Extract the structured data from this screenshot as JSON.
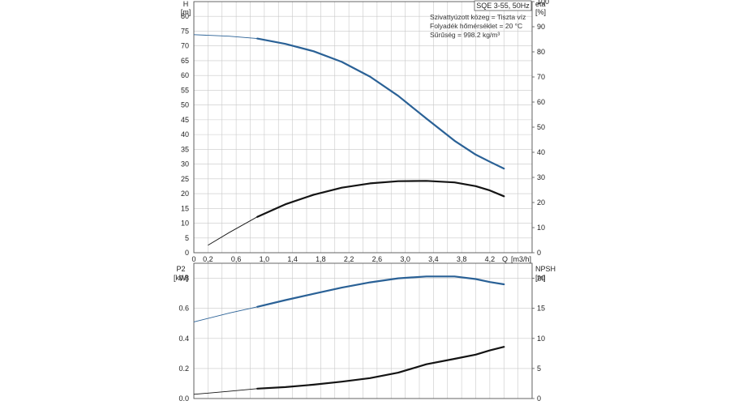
{
  "title": "SQE 3-55, 50Hz",
  "conditions": [
    "Szivattyúzott közeg = Tiszta víz",
    "Folyadék hőmérséklet = 20 °C",
    "Sűrűség = 998.2 kg/m³"
  ],
  "colors": {
    "blue": "#2a6196",
    "black": "#141414",
    "grid": "#c8c8c8",
    "axis": "#555555"
  },
  "chart_data": [
    {
      "type": "line",
      "name": "upper",
      "xlabel": "Q [m3/h]",
      "xlabel_text": "Q",
      "xlabel_unit": "[m3/h]",
      "xlim": [
        0,
        4.8
      ],
      "xticks": [
        "0",
        "0,2",
        "0,6",
        "1,0",
        "1,4",
        "1,8",
        "2,2",
        "2,6",
        "3,0",
        "3,4",
        "3,8",
        "4,2"
      ],
      "xtick_values": [
        0,
        0.2,
        0.6,
        1.0,
        1.4,
        1.8,
        2.2,
        2.6,
        3.0,
        3.4,
        3.8,
        4.2
      ],
      "y_left": {
        "label": "H",
        "unit": "[m]",
        "lim": [
          0,
          85
        ],
        "ticks": [
          0,
          5,
          10,
          15,
          20,
          25,
          30,
          35,
          40,
          45,
          50,
          55,
          60,
          65,
          70,
          75,
          80
        ]
      },
      "y_right": {
        "label": "eta",
        "unit": "[%]",
        "lim": [
          0,
          100
        ],
        "ticks": [
          0,
          10,
          20,
          30,
          40,
          50,
          60,
          70,
          80,
          90,
          100
        ]
      },
      "grid": true,
      "series": [
        {
          "axis": "left",
          "color": "blue",
          "op_range": [
            0.9,
            4.4
          ],
          "x": [
            0,
            0.5,
            0.9,
            1.3,
            1.7,
            2.1,
            2.5,
            2.9,
            3.3,
            3.7,
            4.0,
            4.2,
            4.4
          ],
          "y": [
            73.8,
            73.3,
            72.5,
            70.7,
            68.2,
            64.6,
            59.6,
            53.1,
            45.4,
            37.9,
            33.2,
            30.8,
            28.5
          ]
        },
        {
          "axis": "right",
          "color": "black",
          "op_range": [
            0.9,
            4.4
          ],
          "x": [
            0.2,
            0.5,
            0.9,
            1.3,
            1.7,
            2.1,
            2.5,
            2.9,
            3.3,
            3.7,
            4.0,
            4.2,
            4.4
          ],
          "y": [
            3,
            8,
            14.3,
            19.3,
            23.1,
            25.9,
            27.6,
            28.5,
            28.6,
            28,
            26.5,
            24.8,
            22.5
          ]
        }
      ]
    },
    {
      "type": "line",
      "name": "lower",
      "xlim": [
        0,
        4.8
      ],
      "y_left": {
        "label": "P2",
        "unit": "[kW]",
        "lim": [
          0,
          0.9
        ],
        "ticks": [
          "0.0",
          "0.2",
          "0.4",
          "0.6",
          "0.8"
        ],
        "tick_values": [
          0,
          0.2,
          0.4,
          0.6,
          0.8
        ]
      },
      "y_right": {
        "label": "NPSH",
        "unit": "[m]",
        "lim": [
          0,
          22.5
        ],
        "ticks": [
          0,
          5,
          10,
          15,
          20
        ]
      },
      "grid": true,
      "series": [
        {
          "axis": "left",
          "color": "blue",
          "op_range": [
            0.9,
            4.4
          ],
          "x": [
            0,
            0.5,
            0.9,
            1.3,
            1.7,
            2.1,
            2.5,
            2.9,
            3.3,
            3.7,
            4.0,
            4.2,
            4.4
          ],
          "y": [
            0.51,
            0.568,
            0.61,
            0.655,
            0.697,
            0.738,
            0.773,
            0.8,
            0.812,
            0.812,
            0.795,
            0.775,
            0.76
          ]
        },
        {
          "axis": "right",
          "color": "black",
          "op_range": [
            0.9,
            4.4
          ],
          "x": [
            0,
            0.5,
            0.9,
            1.3,
            1.7,
            2.1,
            2.5,
            2.9,
            3.3,
            3.7,
            4.0,
            4.2,
            4.4
          ],
          "y": [
            0.7,
            1.2,
            1.65,
            1.9,
            2.3,
            2.8,
            3.4,
            4.3,
            5.7,
            6.6,
            7.3,
            8,
            8.6
          ]
        }
      ]
    }
  ]
}
